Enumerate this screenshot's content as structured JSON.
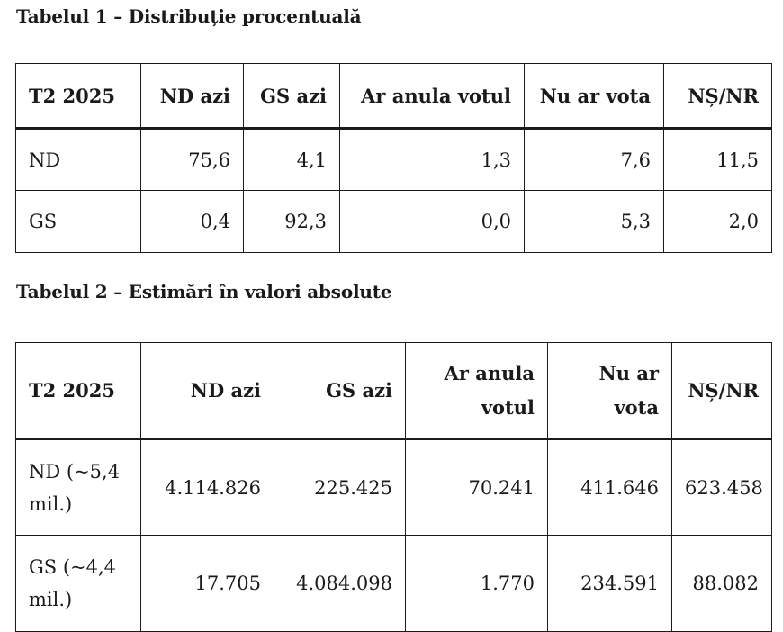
{
  "table1": {
    "caption": "Tabelul 1 – Distribuție procentuală",
    "headers": [
      "T2 2025",
      "ND azi",
      "GS azi",
      "Ar anula votul",
      "Nu ar vota",
      "NȘ/NR"
    ],
    "rows": [
      [
        "ND",
        "75,6",
        "4,1",
        "1,3",
        "7,6",
        "11,5"
      ],
      [
        "GS",
        "0,4",
        "92,3",
        "0,0",
        "5,3",
        "2,0"
      ]
    ]
  },
  "table2": {
    "caption": "Tabelul 2 – Estimări în valori absolute",
    "headers": [
      "T2 2025",
      "ND azi",
      "GS azi",
      "Ar anula votul",
      "Nu ar vota",
      "NȘ/NR"
    ],
    "rows": [
      [
        "ND (~5,4 mil.)",
        "4.114.826",
        "225.425",
        "70.241",
        "411.646",
        "623.458"
      ],
      [
        "GS (~4,4 mil.)",
        "17.705",
        "4.084.098",
        "1.770",
        "234.591",
        "88.082"
      ]
    ]
  }
}
